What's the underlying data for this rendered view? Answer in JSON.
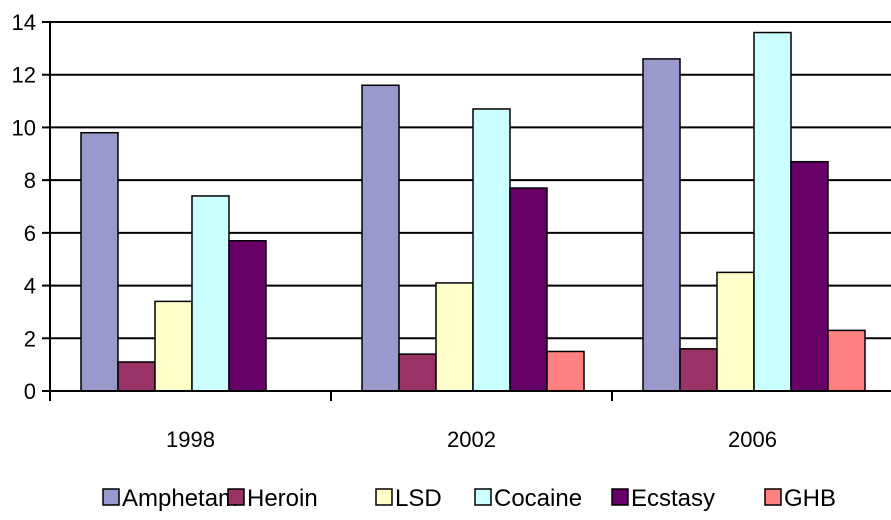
{
  "chart_data": {
    "type": "bar",
    "title": "",
    "xlabel": "",
    "ylabel": "",
    "categories": [
      "1998",
      "2002",
      "2006"
    ],
    "ylim": [
      0,
      14
    ],
    "yticks": [
      "0",
      "2",
      "4",
      "6",
      "8",
      "10",
      "12",
      "14"
    ],
    "grid": true,
    "legend_position": "bottom",
    "series": [
      {
        "name": "Amphetam",
        "color": "#9999cc",
        "values": [
          9.8,
          11.6,
          12.6
        ]
      },
      {
        "name": "Heroin",
        "color": "#993366",
        "values": [
          1.1,
          1.4,
          1.6
        ]
      },
      {
        "name": "LSD",
        "color": "#ffffcc",
        "values": [
          3.4,
          4.1,
          4.5
        ]
      },
      {
        "name": "Cocaine",
        "color": "#ccffff",
        "values": [
          7.4,
          10.7,
          13.6
        ]
      },
      {
        "name": "Ecstasy",
        "color": "#660066",
        "values": [
          5.7,
          7.7,
          8.7
        ]
      },
      {
        "name": "GHB",
        "color": "#ff8080",
        "values": [
          null,
          1.5,
          2.3
        ]
      }
    ]
  }
}
